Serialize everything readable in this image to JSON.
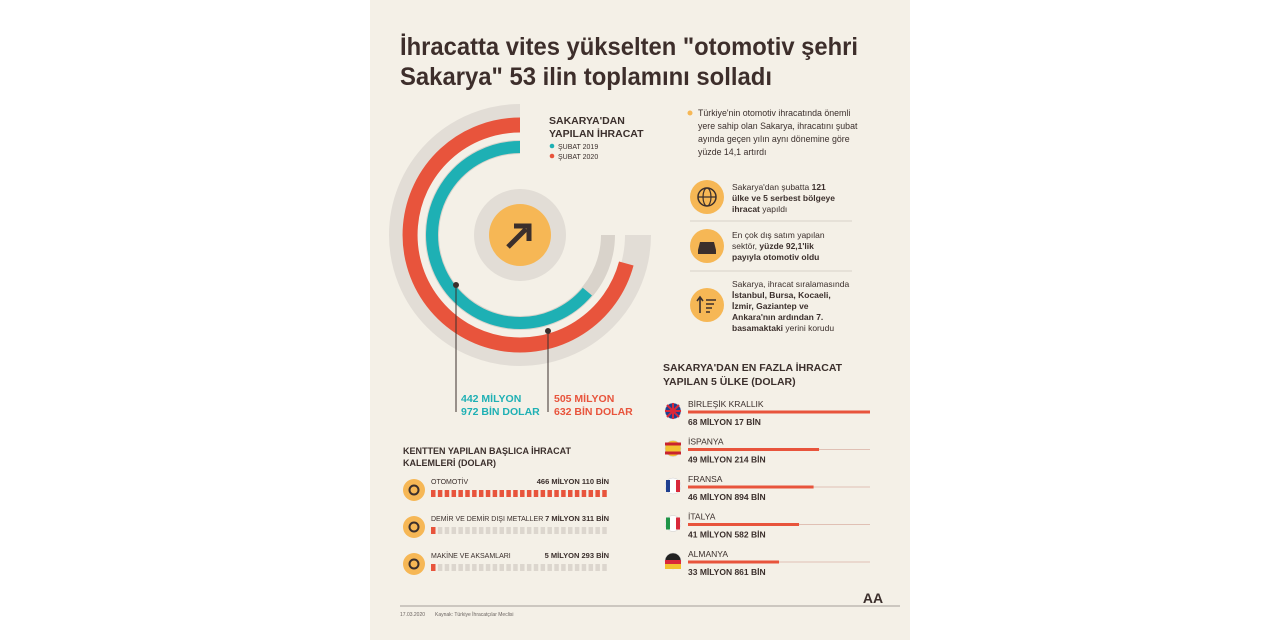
{
  "header": {
    "title": [
      "İhracatta vites yükselten \"otomotiv şehri",
      "Sakarya\" 53 ilin toplamını solladı"
    ]
  },
  "export_chart": {
    "title": [
      "SAKARYA'DAN",
      "YAPILAN İHRACAT"
    ],
    "legend": [
      {
        "label": "ŞUBAT 2019",
        "color": "#1eb0b4"
      },
      {
        "label": "ŞUBAT 2020",
        "color": "#e8543c"
      }
    ],
    "value_2019": [
      "442 MİLYON",
      "972 BİN DOLAR"
    ],
    "value_2020": [
      "505 MİLYON",
      "632 BİN DOLAR"
    ]
  },
  "facts": {
    "intro": [
      [
        {
          "text": "Türkiye'nin otomotiv ihracatında önemli",
          "bold": false
        }
      ],
      [
        {
          "text": "yere sahip olan Sakarya, ihracatını şubat",
          "bold": false
        }
      ],
      [
        {
          "text": "ayında geçen yılın aynı dönemine göre",
          "bold": false
        }
      ],
      [
        {
          "text": "yüzde 14,1 artırdı",
          "bold": false
        }
      ]
    ],
    "items": [
      [
        [
          {
            "text": "Sakarya'dan şubatta ",
            "bold": false
          },
          {
            "text": "121",
            "bold": true
          }
        ],
        [
          {
            "text": "ülke ve 5 serbest bölgeye",
            "bold": true
          }
        ],
        [
          {
            "text": "ihracat",
            "bold": true
          },
          {
            "text": " yapıldı",
            "bold": false
          }
        ]
      ],
      [
        [
          {
            "text": "En çok dış satım yapılan",
            "bold": false
          }
        ],
        [
          {
            "text": "sektör, ",
            "bold": false
          },
          {
            "text": "yüzde 92,1'lik",
            "bold": true
          }
        ],
        [
          {
            "text": "payıyla otomotiv oldu",
            "bold": true
          }
        ]
      ],
      [
        [
          {
            "text": "Sakarya, ihracat sıralamasında",
            "bold": false
          }
        ],
        [
          {
            "text": "İstanbul, Bursa, Kocaeli,",
            "bold": true
          }
        ],
        [
          {
            "text": "İzmir, Gaziantep ve",
            "bold": true
          }
        ],
        [
          {
            "text": "Ankara'nın ardından 7.",
            "bold": true
          }
        ],
        [
          {
            "text": "basamaktaki",
            "bold": true
          },
          {
            "text": " yerini korudu",
            "bold": false
          }
        ]
      ]
    ]
  },
  "top_countries": {
    "title": [
      "SAKARYA'DAN EN FAZLA İHRACAT",
      "YAPILAN 5 ÜLKE (DOLAR)"
    ],
    "rows": [
      {
        "country": "BİRLEŞİK KRALLIK",
        "value": "68 MİLYON 17 BİN"
      },
      {
        "country": "İSPANYA",
        "value": "49 MİLYON 214 BİN"
      },
      {
        "country": "FRANSA",
        "value": "46 MİLYON 894 BİN"
      },
      {
        "country": "İTALYA",
        "value": "41 MİLYON 582 BİN"
      },
      {
        "country": "ALMANYA",
        "value": "33 MİLYON 861 BİN"
      }
    ]
  },
  "export_items": {
    "title": [
      "KENTTEN YAPILAN BAŞLICA İHRACAT",
      "KALEMLERİ (DOLAR)"
    ],
    "rows": [
      {
        "name": "OTOMOTİV",
        "value": "466 MİLYON 110 BİN"
      },
      {
        "name": "DEMİR VE DEMİR DIŞI METALLER",
        "value": "7 MİLYON 311 BİN"
      },
      {
        "name": "MAKİNE VE AKSAMLARI",
        "value": "5 MİLYON 293 BİN"
      }
    ]
  },
  "footer": {
    "date": "17.03.2020",
    "source": "Kaynak: Türkiye İhracatçılar Meclisi",
    "logo": "AA"
  }
}
